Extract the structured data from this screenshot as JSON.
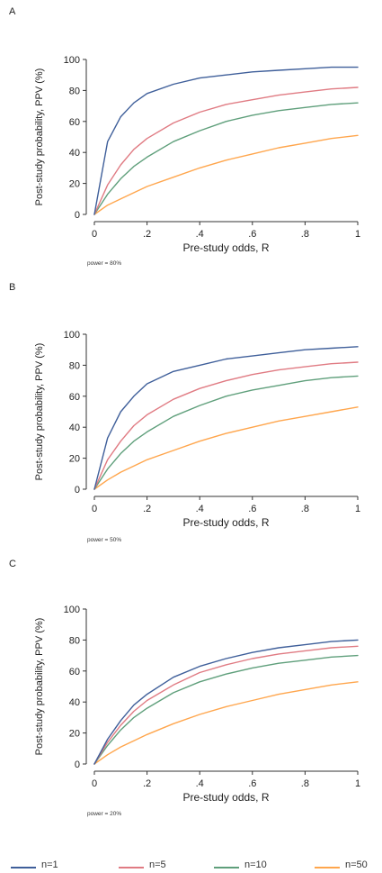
{
  "colors": {
    "axis": "#333333",
    "text": "#222222",
    "series": [
      "#3f5f9a",
      "#e07b83",
      "#5f9f7b",
      "#ffa64d"
    ]
  },
  "legend": [
    {
      "label": "n=1",
      "color": "#3f5f9a"
    },
    {
      "label": "n=5",
      "color": "#e07b83"
    },
    {
      "label": "n=10",
      "color": "#5f9f7b"
    },
    {
      "label": "n=50",
      "color": "#ffa64d"
    }
  ],
  "chart_data": [
    {
      "panel": "A",
      "type": "line",
      "xlabel": "Pre-study odds, R",
      "ylabel": "Post-study probability, PPV (%)",
      "note": "power = 80%",
      "xlim": [
        0,
        1
      ],
      "ylim": [
        0,
        100
      ],
      "xticks": [
        0,
        0.2,
        0.4,
        0.6,
        0.8,
        1
      ],
      "xticklabels": [
        "0",
        ".2",
        ".4",
        ".6",
        ".8",
        "1"
      ],
      "yticks": [
        0,
        20,
        40,
        60,
        80,
        100
      ],
      "yticklabels": [
        "0",
        "20",
        "40",
        "60",
        "80",
        "100"
      ],
      "x": [
        0,
        0.05,
        0.1,
        0.15,
        0.2,
        0.3,
        0.4,
        0.5,
        0.6,
        0.7,
        0.8,
        0.9,
        1
      ],
      "series": [
        {
          "name": "n=1",
          "values": [
            0,
            47,
            63,
            72,
            78,
            84,
            88,
            90,
            92,
            93,
            94,
            95,
            95
          ]
        },
        {
          "name": "n=5",
          "values": [
            0,
            19,
            32,
            42,
            49,
            59,
            66,
            71,
            74,
            77,
            79,
            81,
            82
          ]
        },
        {
          "name": "n=10",
          "values": [
            0,
            13,
            23,
            31,
            37,
            47,
            54,
            60,
            64,
            67,
            69,
            71,
            72
          ]
        },
        {
          "name": "n=50",
          "values": [
            0,
            6,
            10,
            14,
            18,
            24,
            30,
            35,
            39,
            43,
            46,
            49,
            51
          ]
        }
      ]
    },
    {
      "panel": "B",
      "type": "line",
      "xlabel": "Pre-study odds, R",
      "ylabel": "Post-study probability, PPV (%)",
      "note": "power = 50%",
      "xlim": [
        0,
        1
      ],
      "ylim": [
        0,
        100
      ],
      "xticks": [
        0,
        0.2,
        0.4,
        0.6,
        0.8,
        1
      ],
      "xticklabels": [
        "0",
        ".2",
        ".4",
        ".6",
        ".8",
        "1"
      ],
      "yticks": [
        0,
        20,
        40,
        60,
        80,
        100
      ],
      "yticklabels": [
        "0",
        "20",
        "40",
        "60",
        "80",
        "100"
      ],
      "x": [
        0,
        0.05,
        0.1,
        0.15,
        0.2,
        0.3,
        0.4,
        0.5,
        0.6,
        0.7,
        0.8,
        0.9,
        1
      ],
      "series": [
        {
          "name": "n=1",
          "values": [
            0,
            33,
            50,
            60,
            68,
            76,
            80,
            84,
            86,
            88,
            90,
            91,
            92
          ]
        },
        {
          "name": "n=5",
          "values": [
            0,
            19,
            31,
            41,
            48,
            58,
            65,
            70,
            74,
            77,
            79,
            81,
            82
          ]
        },
        {
          "name": "n=10",
          "values": [
            0,
            13,
            23,
            31,
            37,
            47,
            54,
            60,
            64,
            67,
            70,
            72,
            73
          ]
        },
        {
          "name": "n=50",
          "values": [
            0,
            6,
            11,
            15,
            19,
            25,
            31,
            36,
            40,
            44,
            47,
            50,
            53
          ]
        }
      ]
    },
    {
      "panel": "C",
      "type": "line",
      "xlabel": "Pre-study odds, R",
      "ylabel": "Post-study probability, PPV (%)",
      "note": "power = 20%",
      "xlim": [
        0,
        1
      ],
      "ylim": [
        0,
        100
      ],
      "xticks": [
        0,
        0.2,
        0.4,
        0.6,
        0.8,
        1
      ],
      "xticklabels": [
        "0",
        ".2",
        ".4",
        ".6",
        ".8",
        "1"
      ],
      "yticks": [
        0,
        20,
        40,
        60,
        80,
        100
      ],
      "yticklabels": [
        "0",
        "20",
        "40",
        "60",
        "80",
        "100"
      ],
      "x": [
        0,
        0.05,
        0.1,
        0.15,
        0.2,
        0.3,
        0.4,
        0.5,
        0.6,
        0.7,
        0.8,
        0.9,
        1
      ],
      "series": [
        {
          "name": "n=1",
          "values": [
            0,
            16,
            28,
            38,
            45,
            56,
            63,
            68,
            72,
            75,
            77,
            79,
            80
          ]
        },
        {
          "name": "n=5",
          "values": [
            0,
            14,
            25,
            34,
            41,
            51,
            59,
            64,
            68,
            71,
            73,
            75,
            76
          ]
        },
        {
          "name": "n=10",
          "values": [
            0,
            12,
            22,
            30,
            36,
            46,
            53,
            58,
            62,
            65,
            67,
            69,
            70
          ]
        },
        {
          "name": "n=50",
          "values": [
            0,
            6,
            11,
            15,
            19,
            26,
            32,
            37,
            41,
            45,
            48,
            51,
            53
          ]
        }
      ]
    }
  ]
}
